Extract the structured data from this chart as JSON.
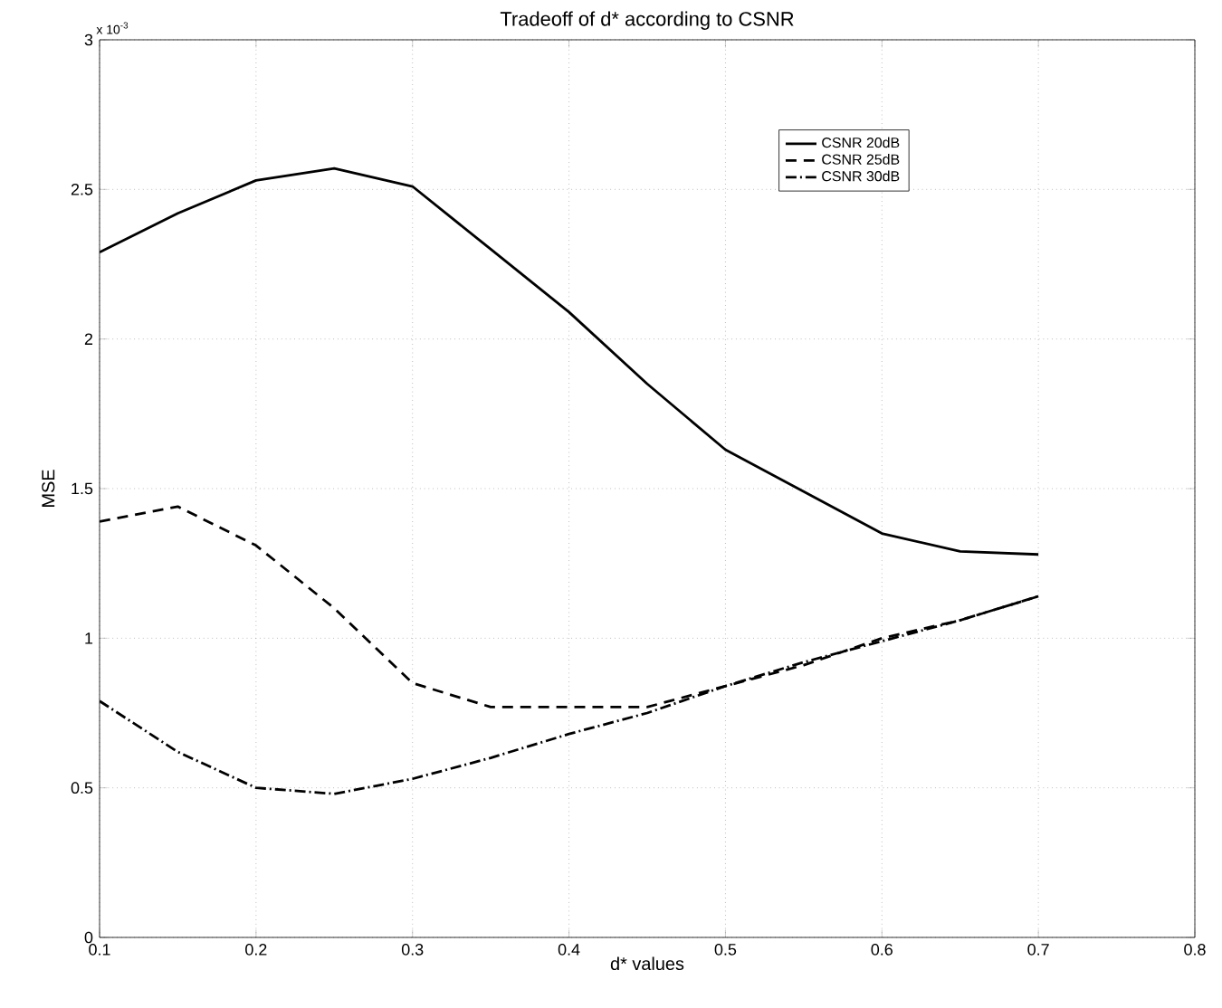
{
  "chart_data": {
    "type": "line",
    "title": "Tradeoff of d* according to CSNR",
    "xlabel": "d* values",
    "ylabel": "MSE",
    "annotations": [
      "x 10$^{-3}$"
    ],
    "x": [
      0.1,
      0.15,
      0.2,
      0.25,
      0.3,
      0.35,
      0.4,
      0.45,
      0.5,
      0.55,
      0.6,
      0.65,
      0.7
    ],
    "series": [
      {
        "name": "CSNR 20dB",
        "color": "#000000",
        "line_style": "solid",
        "values": [
          2.29,
          2.42,
          2.53,
          2.57,
          2.51,
          2.3,
          2.09,
          1.85,
          1.63,
          1.49,
          1.35,
          1.29,
          1.28
        ]
      },
      {
        "name": "CSNR 25dB",
        "color": "#000000",
        "line_style": "dashed",
        "values": [
          1.39,
          1.44,
          1.31,
          1.1,
          0.85,
          0.77,
          0.77,
          0.77,
          0.84,
          0.91,
          1.0,
          1.06,
          1.14
        ]
      },
      {
        "name": "CSNR 30dB",
        "color": "#000000",
        "line_style": "dashdot",
        "values": [
          0.79,
          0.62,
          0.5,
          0.48,
          0.53,
          0.6,
          0.68,
          0.75,
          0.84,
          0.92,
          0.99,
          1.06,
          1.14
        ]
      }
    ],
    "xlim": [
      0.1,
      0.8
    ],
    "ylim": [
      0,
      3
    ],
    "xticks": [
      0.1,
      0.2,
      0.3,
      0.4,
      0.5,
      0.6,
      0.7,
      0.8
    ],
    "yticks": [
      0,
      0.5,
      1,
      1.5,
      2,
      2.5,
      3
    ],
    "grid": true,
    "legend": "top right",
    "marker": "none"
  }
}
